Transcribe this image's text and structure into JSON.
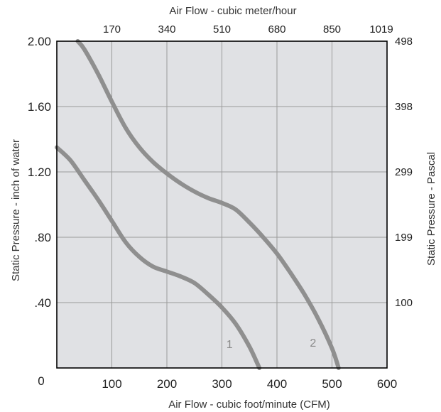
{
  "chart_data": {
    "type": "line",
    "xlabel": "Air Flow - cubic foot/minute (CFM)",
    "x2label": "Air Flow - cubic meter/hour",
    "ylabel": "Static Pressure - inch of water",
    "y2label": "Static Pressure - Pascal",
    "xlim": [
      0,
      600
    ],
    "ylim": [
      0,
      2.0
    ],
    "grid": true,
    "x_ticks": [
      {
        "value": 100,
        "label": "100"
      },
      {
        "value": 200,
        "label": "200"
      },
      {
        "value": 300,
        "label": "300"
      },
      {
        "value": 400,
        "label": "400"
      },
      {
        "value": 500,
        "label": "500"
      }
    ],
    "x_tick_label_min": "0",
    "x_tick_label_max": "600",
    "x2_ticks": [
      {
        "value": 100,
        "label": "170"
      },
      {
        "value": 200,
        "label": "340"
      },
      {
        "value": 300,
        "label": "510"
      },
      {
        "value": 400,
        "label": "680"
      },
      {
        "value": 500,
        "label": "850"
      },
      {
        "value": 600,
        "label": "1019"
      }
    ],
    "y_ticks": [
      {
        "value": 2.0,
        "label": "2.00"
      },
      {
        "value": 1.6,
        "label": "1.60"
      },
      {
        "value": 1.2,
        "label": "1.20"
      },
      {
        "value": 0.8,
        "label": ".80"
      },
      {
        "value": 0.4,
        "label": ".40"
      }
    ],
    "y2_ticks": [
      {
        "value": 2.0,
        "label": "498"
      },
      {
        "value": 1.6,
        "label": "398"
      },
      {
        "value": 1.2,
        "label": "299"
      },
      {
        "value": 0.8,
        "label": "199"
      },
      {
        "value": 0.4,
        "label": "100"
      }
    ],
    "series": [
      {
        "name": "1",
        "x": [
          0,
          25,
          50,
          75,
          100,
          125,
          150,
          175,
          200,
          225,
          250,
          275,
          300,
          325,
          350,
          368
        ],
        "y": [
          1.35,
          1.27,
          1.15,
          1.03,
          0.9,
          0.77,
          0.68,
          0.62,
          0.59,
          0.56,
          0.52,
          0.45,
          0.37,
          0.27,
          0.13,
          0.0
        ]
      },
      {
        "name": "2",
        "x": [
          38,
          50,
          75,
          100,
          125,
          150,
          175,
          200,
          225,
          250,
          275,
          300,
          325,
          350,
          375,
          400,
          425,
          450,
          475,
          500,
          512
        ],
        "y": [
          2.0,
          1.95,
          1.8,
          1.63,
          1.47,
          1.35,
          1.26,
          1.19,
          1.13,
          1.08,
          1.04,
          1.01,
          0.97,
          0.89,
          0.8,
          0.7,
          0.58,
          0.45,
          0.3,
          0.12,
          0.0
        ]
      }
    ],
    "colors": {
      "plot_background": "#e0e1e4",
      "grid": "#9a9a9a",
      "curve": "#8f8f8f",
      "axis": "#000000"
    }
  }
}
